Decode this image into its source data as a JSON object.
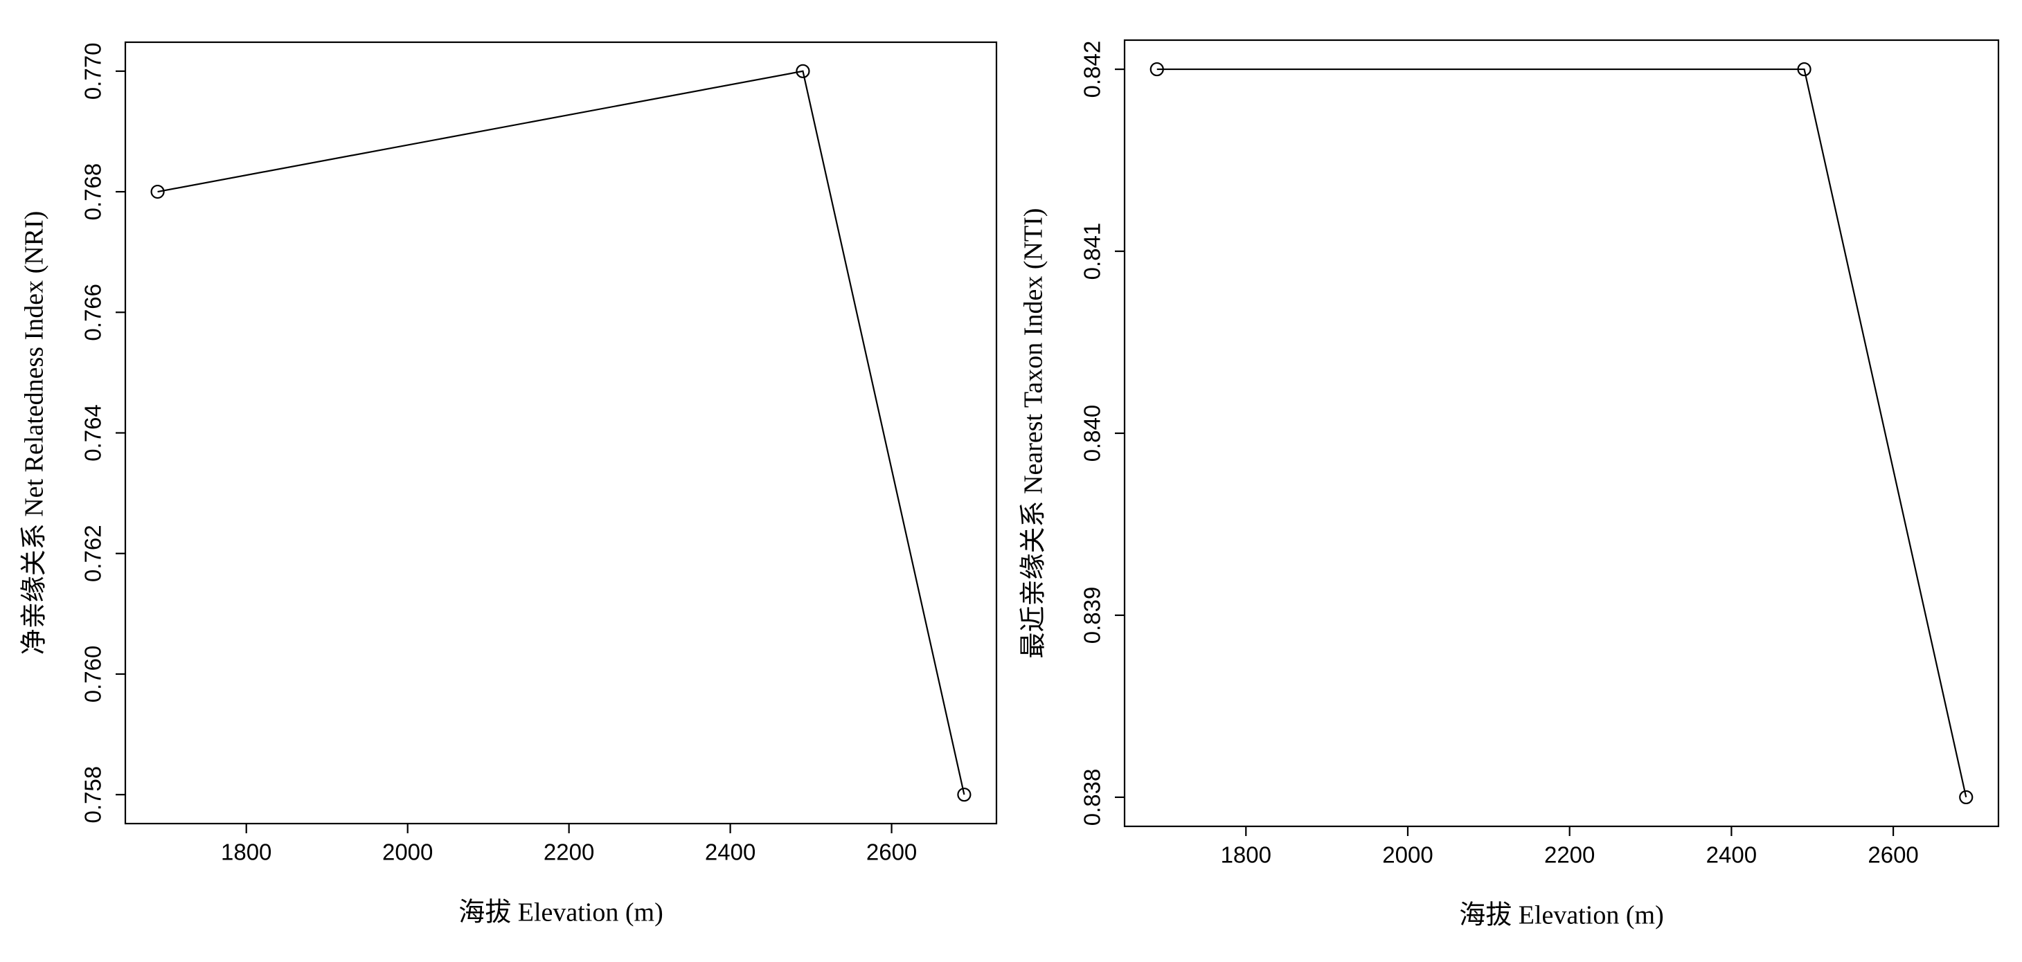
{
  "chart_data": [
    {
      "type": "line",
      "x": [
        1690,
        2490,
        2690
      ],
      "values": [
        0.768,
        0.77,
        0.758
      ],
      "xlim": [
        1650,
        2730
      ],
      "ylim": [
        0.75752,
        0.77048
      ],
      "xticks": [
        1800,
        2000,
        2200,
        2400,
        2600
      ],
      "yticks": [
        0.758,
        {
          "value": 0.76,
          "label": "0.760"
        },
        0.762,
        0.764,
        0.766,
        0.768,
        {
          "value": 0.77,
          "label": "0.770"
        }
      ],
      "xlabel": "海拔  Elevation (m)",
      "ylabel": "净亲缘关系      Net Relatedness Index (NRI)",
      "color": "#000000",
      "marker": "circle"
    },
    {
      "type": "line",
      "x": [
        1690,
        2490,
        2690
      ],
      "values": [
        0.842,
        0.842,
        0.838
      ],
      "xlim": [
        1650,
        2730
      ],
      "ylim": [
        0.83784,
        0.84216
      ],
      "xticks": [
        1800,
        2000,
        2200,
        2400,
        2600
      ],
      "yticks": [
        0.838,
        0.839,
        {
          "value": 0.84,
          "label": "0.840"
        },
        0.841,
        0.842
      ],
      "xlabel": "海拔 Elevation (m)",
      "ylabel": "最近亲缘关系      Nearest Taxon Index (NTI)",
      "color": "#000000",
      "marker": "circle"
    }
  ]
}
